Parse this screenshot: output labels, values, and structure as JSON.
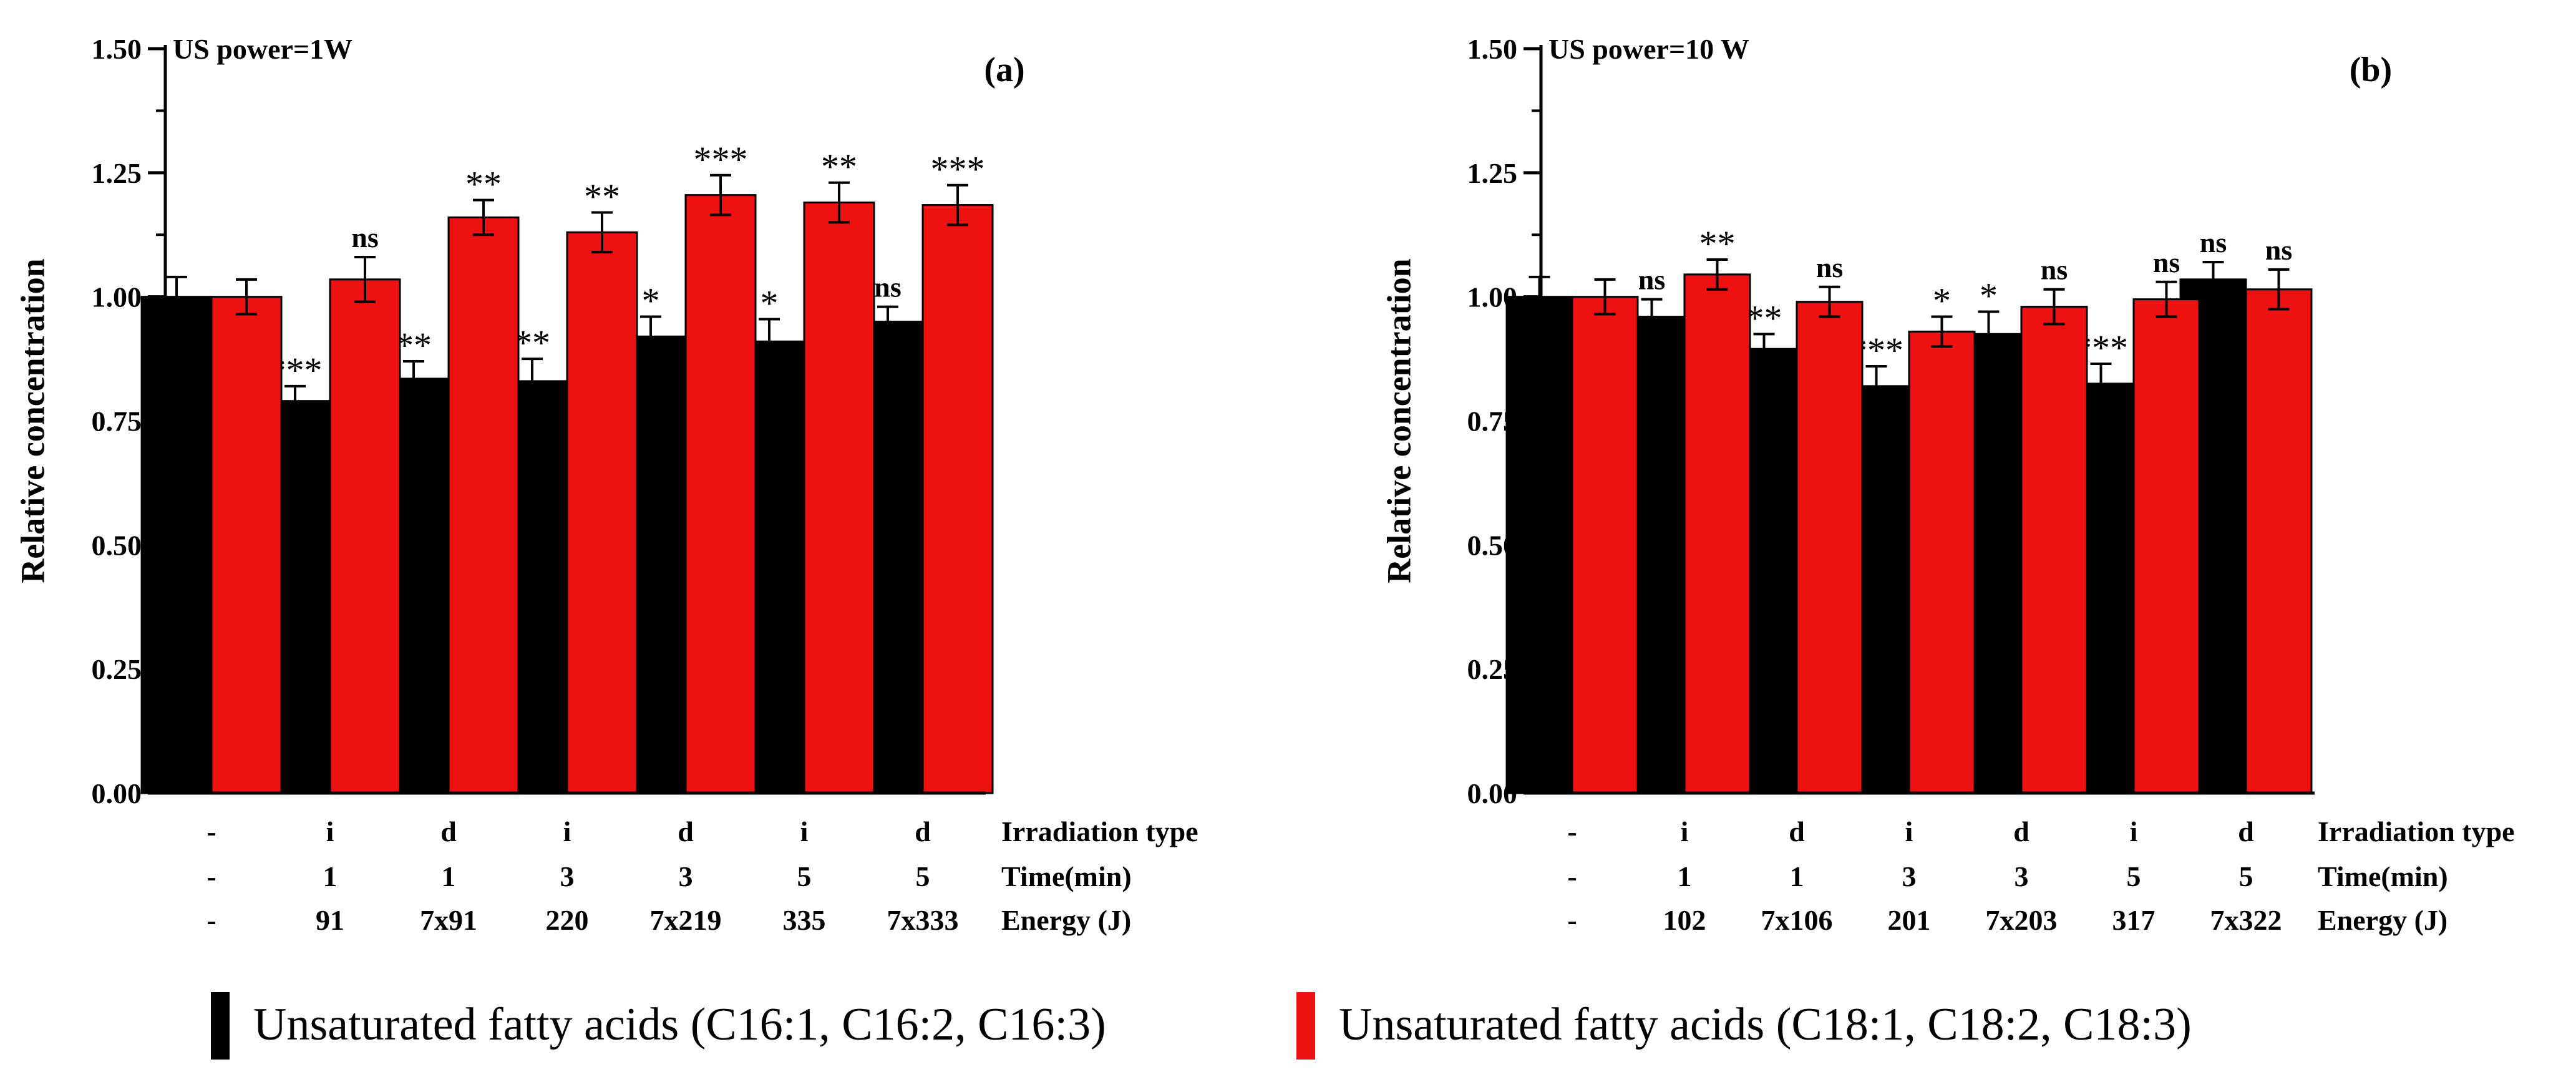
{
  "chart_data": [
    {
      "type": "bar",
      "panel_label": "(a)",
      "title": "US power=1W",
      "ylabel": "Relative concentration",
      "ylim": [
        0,
        1.5
      ],
      "yticks": [
        "0.00",
        "0.25",
        "0.50",
        "0.75",
        "1.00",
        "1.25",
        "1.50"
      ],
      "row_titles": [
        "Irradiation type",
        "Time(min)",
        "Energy (J)"
      ],
      "rows": {
        "irradiation_type": [
          "-",
          "i",
          "d",
          "i",
          "d",
          "i",
          "d"
        ],
        "time": [
          "-",
          "1",
          "1",
          "3",
          "3",
          "5",
          "5"
        ],
        "energy": [
          "-",
          "91",
          "7x91",
          "220",
          "7x219",
          "335",
          "7x333"
        ]
      },
      "series": [
        {
          "name": "Unsaturated fatty acids (C16:1, C16:2, C16:3)",
          "color": "#000000",
          "values": [
            1.0,
            0.79,
            0.835,
            0.83,
            0.92,
            0.91,
            0.95
          ],
          "errors": [
            0.04,
            0.03,
            0.035,
            0.045,
            0.04,
            0.045,
            0.03
          ],
          "significance": [
            "",
            "***",
            "**",
            "**",
            "*",
            "*",
            "ns"
          ]
        },
        {
          "name": "Unsaturated fatty acids (C18:1, C18:2, C18:3)",
          "color": "#ee1111",
          "values": [
            1.0,
            1.035,
            1.16,
            1.13,
            1.205,
            1.19,
            1.185
          ],
          "errors": [
            0.035,
            0.045,
            0.035,
            0.04,
            0.04,
            0.04,
            0.04
          ],
          "significance": [
            "",
            "ns",
            "**",
            "**",
            "***",
            "**",
            "***"
          ]
        }
      ]
    },
    {
      "type": "bar",
      "panel_label": "(b)",
      "title": "US power=10 W",
      "ylabel": "Relative concentration",
      "ylim": [
        0,
        1.5
      ],
      "yticks": [
        "0.00",
        "0.25",
        "0.50",
        "0.75",
        "1.00",
        "1.25",
        "1.50"
      ],
      "row_titles": [
        "Irradiation type",
        "Time(min)",
        "Energy (J)"
      ],
      "rows": {
        "irradiation_type": [
          "-",
          "i",
          "d",
          "i",
          "d",
          "i",
          "d"
        ],
        "time": [
          "-",
          "1",
          "1",
          "3",
          "3",
          "5",
          "5"
        ],
        "energy": [
          "-",
          "102",
          "7x106",
          "201",
          "7x203",
          "317",
          "7x322"
        ]
      },
      "series": [
        {
          "name": "Unsaturated fatty acids (C16:1, C16:2, C16:3)",
          "color": "#000000",
          "values": [
            1.0,
            0.96,
            0.895,
            0.82,
            0.925,
            0.825,
            1.035
          ],
          "errors": [
            0.04,
            0.035,
            0.03,
            0.04,
            0.045,
            0.04,
            0.035
          ],
          "significance": [
            "",
            "ns",
            "**",
            "***",
            "*",
            "***",
            "ns"
          ]
        },
        {
          "name": "Unsaturated fatty acids (C18:1, C18:2, C18:3)",
          "color": "#ee1111",
          "values": [
            1.0,
            1.045,
            0.99,
            0.93,
            0.98,
            0.995,
            1.015
          ],
          "errors": [
            0.035,
            0.03,
            0.03,
            0.03,
            0.035,
            0.035,
            0.04
          ],
          "significance": [
            "",
            "**",
            "ns",
            "*",
            "ns",
            "ns",
            "ns"
          ]
        }
      ]
    }
  ],
  "legend": [
    {
      "label": "Unsaturated fatty acids (C16:1, C16:2, C16:3)",
      "color": "#000000"
    },
    {
      "label": "Unsaturated fatty acids (C18:1, C18:2, C18:3)",
      "color": "#ee1111"
    }
  ]
}
